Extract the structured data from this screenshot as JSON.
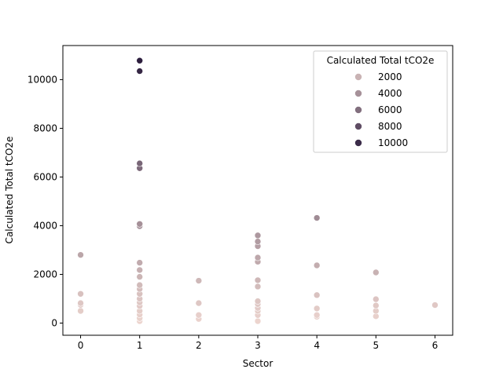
{
  "chart_data": {
    "type": "scatter",
    "xlabel": "Sector",
    "ylabel": "Calculated Total tCO2e",
    "xlim": [
      -0.3,
      6.3
    ],
    "ylim": [
      -500,
      11400
    ],
    "x_ticks": [
      0,
      1,
      2,
      3,
      4,
      5,
      6
    ],
    "y_ticks": [
      0,
      2000,
      4000,
      6000,
      8000,
      10000
    ],
    "grid": false,
    "legend": {
      "title": "Calculated Total tCO2e",
      "placement": "top-right",
      "entries": [
        {
          "label": "2000",
          "value": 2000
        },
        {
          "label": "4000",
          "value": 4000
        },
        {
          "label": "6000",
          "value": 6000
        },
        {
          "label": "8000",
          "value": 8000
        },
        {
          "label": "10000",
          "value": 10000
        }
      ]
    },
    "color_scale": {
      "min": 0,
      "max": 10800,
      "low_color": "#edd5cf",
      "high_color": "#2d1e3e"
    },
    "points": [
      {
        "x": 0,
        "y": 2800
      },
      {
        "x": 0,
        "y": 1200
      },
      {
        "x": 0,
        "y": 820
      },
      {
        "x": 0,
        "y": 750
      },
      {
        "x": 0,
        "y": 500
      },
      {
        "x": 1,
        "y": 10780
      },
      {
        "x": 1,
        "y": 10350
      },
      {
        "x": 1,
        "y": 6560
      },
      {
        "x": 1,
        "y": 6360
      },
      {
        "x": 1,
        "y": 4070
      },
      {
        "x": 1,
        "y": 3980
      },
      {
        "x": 1,
        "y": 2480
      },
      {
        "x": 1,
        "y": 2180
      },
      {
        "x": 1,
        "y": 1900
      },
      {
        "x": 1,
        "y": 1560
      },
      {
        "x": 1,
        "y": 1400
      },
      {
        "x": 1,
        "y": 1200
      },
      {
        "x": 1,
        "y": 1000
      },
      {
        "x": 1,
        "y": 850
      },
      {
        "x": 1,
        "y": 700
      },
      {
        "x": 1,
        "y": 500
      },
      {
        "x": 1,
        "y": 350
      },
      {
        "x": 1,
        "y": 200
      },
      {
        "x": 1,
        "y": 80
      },
      {
        "x": 2,
        "y": 1740
      },
      {
        "x": 2,
        "y": 820
      },
      {
        "x": 2,
        "y": 330
      },
      {
        "x": 2,
        "y": 170
      },
      {
        "x": 3,
        "y": 3600
      },
      {
        "x": 3,
        "y": 3350
      },
      {
        "x": 3,
        "y": 3160
      },
      {
        "x": 3,
        "y": 2690
      },
      {
        "x": 3,
        "y": 2520
      },
      {
        "x": 3,
        "y": 1760
      },
      {
        "x": 3,
        "y": 1500
      },
      {
        "x": 3,
        "y": 900
      },
      {
        "x": 3,
        "y": 780
      },
      {
        "x": 3,
        "y": 620
      },
      {
        "x": 3,
        "y": 500
      },
      {
        "x": 3,
        "y": 330
      },
      {
        "x": 3,
        "y": 80
      },
      {
        "x": 4,
        "y": 4320
      },
      {
        "x": 4,
        "y": 2370
      },
      {
        "x": 4,
        "y": 1150
      },
      {
        "x": 4,
        "y": 600
      },
      {
        "x": 4,
        "y": 330
      },
      {
        "x": 4,
        "y": 260
      },
      {
        "x": 5,
        "y": 2080
      },
      {
        "x": 5,
        "y": 980
      },
      {
        "x": 5,
        "y": 720
      },
      {
        "x": 5,
        "y": 500
      },
      {
        "x": 5,
        "y": 280
      },
      {
        "x": 6,
        "y": 740
      }
    ]
  }
}
